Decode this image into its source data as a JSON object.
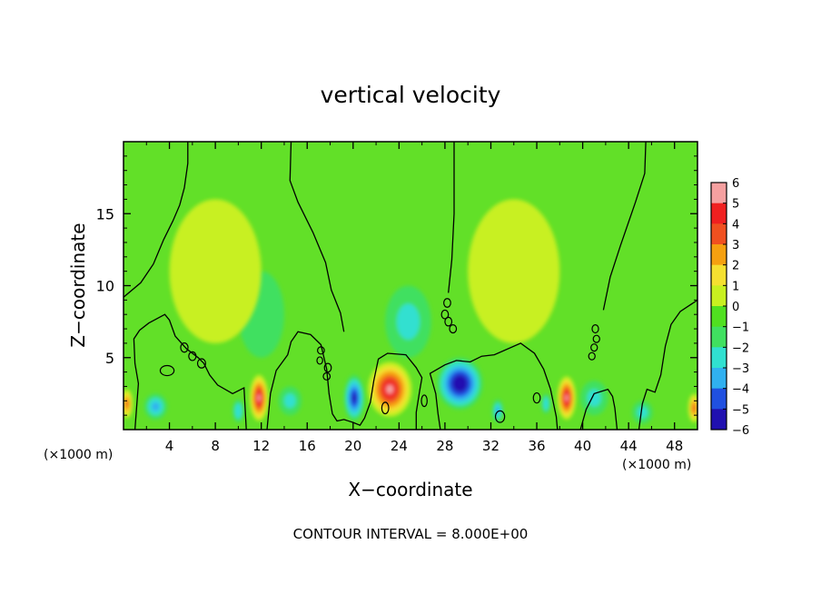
{
  "chart_data": {
    "type": "heatmap",
    "title": "vertical velocity",
    "xlabel": "X−coordinate",
    "ylabel": "Z−coordinate",
    "x_unit_left": "(×1000 m)",
    "x_unit_right": "(×1000 m)",
    "footer": "CONTOUR INTERVAL = 8.000E+00",
    "xlim": [
      0,
      50
    ],
    "ylim": [
      0,
      20
    ],
    "x_ticks": [
      4,
      8,
      12,
      16,
      20,
      24,
      28,
      32,
      36,
      40,
      44,
      48
    ],
    "x_tick_labels": [
      "4",
      "8",
      "12",
      "16",
      "20",
      "24",
      "28",
      "32",
      "36",
      "40",
      "44",
      "48"
    ],
    "y_ticks": [
      5,
      10,
      15
    ],
    "y_tick_labels": [
      "5",
      "10",
      "15"
    ],
    "colorbar": {
      "levels": [
        6,
        5,
        4,
        3,
        2,
        1,
        0,
        -1,
        -2,
        -3,
        -4,
        -5,
        -6
      ],
      "labels": [
        "6",
        "5",
        "4",
        "3",
        "2",
        "1",
        "0",
        "−1",
        "−2",
        "−3",
        "−4",
        "−5",
        "−6"
      ],
      "colors": [
        "#f5a0a0",
        "#f02020",
        "#f05020",
        "#f5a010",
        "#f5e030",
        "#c8f020",
        "#50e020",
        "#40e060",
        "#30e0d0",
        "#30b0f0",
        "#2050e0",
        "#2010b0",
        "#6010a0"
      ]
    },
    "background_color": "#62e028",
    "features": [
      {
        "label": "updraft",
        "x": 0.3,
        "z": 1.8,
        "sx": 0.5,
        "sz": 1.0,
        "value": 3.5
      },
      {
        "label": "updraft",
        "x": 11.8,
        "z": 2.2,
        "sx": 0.8,
        "sz": 1.6,
        "value": 6.0
      },
      {
        "label": "updraft",
        "x": 23.2,
        "z": 2.8,
        "sx": 1.9,
        "sz": 1.9,
        "value": 6.0
      },
      {
        "label": "updraft",
        "x": 38.6,
        "z": 2.2,
        "sx": 0.8,
        "sz": 1.5,
        "value": 6.0
      },
      {
        "label": "updraft",
        "x": 49.7,
        "z": 1.5,
        "sx": 0.5,
        "sz": 1.0,
        "value": 4.0
      },
      {
        "label": "downdraft",
        "x": 2.8,
        "z": 1.6,
        "sx": 1.0,
        "sz": 0.9,
        "value": -3.0
      },
      {
        "label": "downdraft",
        "x": 10.0,
        "z": 1.3,
        "sx": 0.5,
        "sz": 0.8,
        "value": -2.5
      },
      {
        "label": "downdraft",
        "x": 14.5,
        "z": 2.0,
        "sx": 1.0,
        "sz": 1.0,
        "value": -2.0
      },
      {
        "label": "downdraft",
        "x": 20.1,
        "z": 2.2,
        "sx": 0.9,
        "sz": 1.6,
        "value": -5.0
      },
      {
        "label": "downdraft",
        "x": 29.3,
        "z": 3.2,
        "sx": 2.0,
        "sz": 1.8,
        "value": -5.5
      },
      {
        "label": "downdraft",
        "x": 32.6,
        "z": 1.3,
        "sx": 0.5,
        "sz": 0.8,
        "value": -3.0
      },
      {
        "label": "downdraft",
        "x": 36.8,
        "z": 1.8,
        "sx": 0.4,
        "sz": 0.7,
        "value": -2.5
      },
      {
        "label": "downdraft",
        "x": 41.0,
        "z": 2.2,
        "sx": 1.2,
        "sz": 1.2,
        "value": -2.0
      },
      {
        "label": "downdraft",
        "x": 45.2,
        "z": 1.2,
        "sx": 0.9,
        "sz": 0.8,
        "value": -2.0
      },
      {
        "label": "weak-downdraft",
        "x": 24.8,
        "z": 7.5,
        "sx": 2.0,
        "sz": 2.5,
        "value": -1.6
      },
      {
        "label": "weak-updraft",
        "x": 8.0,
        "z": 11.0,
        "sx": 4.0,
        "sz": 5.0,
        "value": 0.8
      },
      {
        "label": "weak-updraft",
        "x": 34.0,
        "z": 11.0,
        "sx": 4.0,
        "sz": 5.0,
        "value": 0.8
      },
      {
        "label": "weak-downdraft",
        "x": 12.0,
        "z": 8.0,
        "sx": 2.0,
        "sz": 3.0,
        "value": -0.6
      }
    ],
    "zero_contours": [
      [
        [
          0,
          9.2
        ],
        [
          1.5,
          10.2
        ],
        [
          2.6,
          11.5
        ],
        [
          3.5,
          13.2
        ],
        [
          4.3,
          14.5
        ],
        [
          4.9,
          15.6
        ],
        [
          5.3,
          16.8
        ],
        [
          5.6,
          18.5
        ],
        [
          5.6,
          20
        ]
      ],
      [
        [
          14.6,
          20
        ],
        [
          14.5,
          17.3
        ],
        [
          15.2,
          15.8
        ],
        [
          16.5,
          13.7
        ],
        [
          17.6,
          11.6
        ],
        [
          18.1,
          9.7
        ],
        [
          18.9,
          8.1
        ],
        [
          19.2,
          6.8
        ]
      ],
      [
        [
          28.8,
          20
        ],
        [
          28.8,
          15.0
        ],
        [
          28.6,
          11.8
        ],
        [
          28.3,
          9.5
        ]
      ],
      [
        [
          45.5,
          20
        ],
        [
          45.4,
          17.8
        ],
        [
          44.6,
          15.8
        ],
        [
          43.3,
          12.8
        ],
        [
          42.4,
          10.6
        ],
        [
          41.8,
          8.3
        ]
      ],
      [
        [
          50,
          9.0
        ],
        [
          48.5,
          8.2
        ],
        [
          47.7,
          7.3
        ],
        [
          47.2,
          5.8
        ],
        [
          46.8,
          3.8
        ],
        [
          46.3,
          2.6
        ],
        [
          45.6,
          2.8
        ],
        [
          45.2,
          1.8
        ],
        [
          44.9,
          0
        ]
      ],
      [
        [
          1.0,
          0
        ],
        [
          1.3,
          3.2
        ],
        [
          1.0,
          4.6
        ],
        [
          0.9,
          6.3
        ],
        [
          1.4,
          6.9
        ],
        [
          2.2,
          7.4
        ],
        [
          3.6,
          8.0
        ],
        [
          4.0,
          7.6
        ],
        [
          4.5,
          6.5
        ],
        [
          5.5,
          5.6
        ],
        [
          6.5,
          5.0
        ],
        [
          7.0,
          4.6
        ],
        [
          7.5,
          3.8
        ],
        [
          8.2,
          3.1
        ],
        [
          9.5,
          2.5
        ],
        [
          10.5,
          2.9
        ],
        [
          10.7,
          0
        ]
      ],
      [
        [
          12.5,
          0
        ],
        [
          12.8,
          2.5
        ],
        [
          13.3,
          4.1
        ],
        [
          14.3,
          5.2
        ],
        [
          14.6,
          6.1
        ],
        [
          15.2,
          6.8
        ],
        [
          16.3,
          6.6
        ],
        [
          17.2,
          5.9
        ],
        [
          17.7,
          4.2
        ],
        [
          17.9,
          2.5
        ],
        [
          18.2,
          1.1
        ],
        [
          18.6,
          0.6
        ],
        [
          19.2,
          0.7
        ],
        [
          20.0,
          0.5
        ],
        [
          20.6,
          0.3
        ],
        [
          21.0,
          0.8
        ],
        [
          21.5,
          1.9
        ],
        [
          21.8,
          3.4
        ],
        [
          22.2,
          4.9
        ],
        [
          23.0,
          5.3
        ],
        [
          24.6,
          5.2
        ],
        [
          25.5,
          4.3
        ],
        [
          26.0,
          3.6
        ],
        [
          25.8,
          2.7
        ],
        [
          25.5,
          1.2
        ],
        [
          25.5,
          0
        ]
      ],
      [
        [
          27.6,
          0
        ],
        [
          27.4,
          1.1
        ],
        [
          27.2,
          2.5
        ],
        [
          26.7,
          3.9
        ],
        [
          28.0,
          4.5
        ],
        [
          29.0,
          4.8
        ],
        [
          30.2,
          4.7
        ],
        [
          31.2,
          5.1
        ],
        [
          32.3,
          5.2
        ],
        [
          34.6,
          6.0
        ],
        [
          35.8,
          5.3
        ],
        [
          36.6,
          4.2
        ],
        [
          37.2,
          2.8
        ],
        [
          37.7,
          0.9
        ],
        [
          37.8,
          0
        ]
      ],
      [
        [
          39.8,
          0
        ],
        [
          40.3,
          1.4
        ],
        [
          41.0,
          2.5
        ],
        [
          42.2,
          2.8
        ],
        [
          42.6,
          2.3
        ],
        [
          42.8,
          1.5
        ],
        [
          43.0,
          0
        ]
      ]
    ],
    "small_contours": [
      {
        "x": 5.3,
        "z": 5.7,
        "rx": 0.32,
        "rz": 0.32
      },
      {
        "x": 6.0,
        "z": 5.1,
        "rx": 0.32,
        "rz": 0.3
      },
      {
        "x": 6.8,
        "z": 4.6,
        "rx": 0.35,
        "rz": 0.32
      },
      {
        "x": 3.8,
        "z": 4.1,
        "rx": 0.6,
        "rz": 0.35
      },
      {
        "x": 17.2,
        "z": 5.5,
        "rx": 0.3,
        "rz": 0.25
      },
      {
        "x": 17.1,
        "z": 4.8,
        "rx": 0.25,
        "rz": 0.25
      },
      {
        "x": 17.8,
        "z": 4.3,
        "rx": 0.3,
        "rz": 0.3
      },
      {
        "x": 17.7,
        "z": 3.7,
        "rx": 0.3,
        "rz": 0.25
      },
      {
        "x": 28.2,
        "z": 8.8,
        "rx": 0.3,
        "rz": 0.3
      },
      {
        "x": 28.0,
        "z": 8.0,
        "rx": 0.3,
        "rz": 0.3
      },
      {
        "x": 28.3,
        "z": 7.5,
        "rx": 0.3,
        "rz": 0.3
      },
      {
        "x": 28.7,
        "z": 7.0,
        "rx": 0.3,
        "rz": 0.28
      },
      {
        "x": 41.1,
        "z": 7.0,
        "rx": 0.28,
        "rz": 0.28
      },
      {
        "x": 41.2,
        "z": 6.3,
        "rx": 0.28,
        "rz": 0.25
      },
      {
        "x": 41.0,
        "z": 5.7,
        "rx": 0.28,
        "rz": 0.25
      },
      {
        "x": 40.8,
        "z": 5.1,
        "rx": 0.28,
        "rz": 0.25
      },
      {
        "x": 26.2,
        "z": 2.0,
        "rx": 0.25,
        "rz": 0.4
      },
      {
        "x": 36.0,
        "z": 2.2,
        "rx": 0.3,
        "rz": 0.35
      },
      {
        "x": 22.8,
        "z": 1.5,
        "rx": 0.3,
        "rz": 0.4
      },
      {
        "x": 32.8,
        "z": 0.9,
        "rx": 0.4,
        "rz": 0.4
      }
    ]
  }
}
